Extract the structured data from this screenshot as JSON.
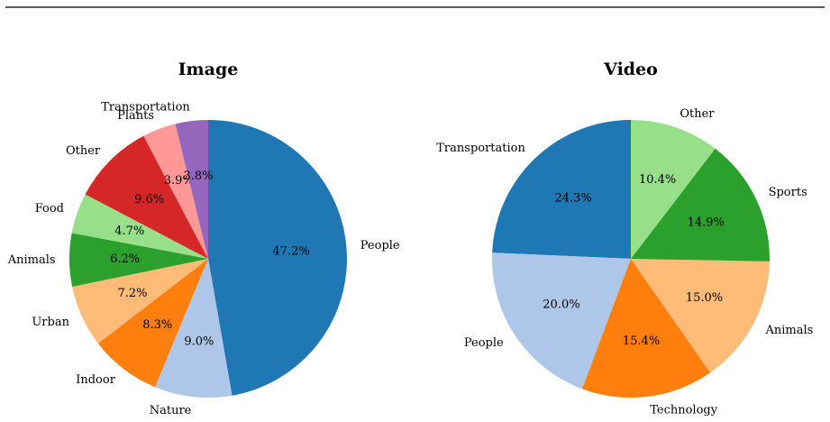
{
  "chart_data": [
    {
      "type": "pie",
      "title": "Image",
      "start_angle_deg": 90,
      "direction": "clockwise",
      "slices": [
        {
          "label": "People",
          "value": 47.2,
          "display": "47.2%",
          "color": "#1f77b4"
        },
        {
          "label": "Nature",
          "value": 9.0,
          "display": "9.0%",
          "color": "#aec7e8"
        },
        {
          "label": "Indoor",
          "value": 8.3,
          "display": "8.3%",
          "color": "#ff7f0e"
        },
        {
          "label": "Urban",
          "value": 7.2,
          "display": "7.2%",
          "color": "#ffbb78"
        },
        {
          "label": "Animals",
          "value": 6.2,
          "display": "6.2%",
          "color": "#2ca02c"
        },
        {
          "label": "Food",
          "value": 4.7,
          "display": "4.7%",
          "color": "#98df8a"
        },
        {
          "label": "Other",
          "value": 9.6,
          "display": "9.6%",
          "color": "#d62728"
        },
        {
          "label": "Plants",
          "value": 3.9,
          "display": "3.9%",
          "color": "#ff9896"
        },
        {
          "label": "Transportation",
          "value": 3.8,
          "display": "3.8%",
          "color": "#9467bd"
        }
      ]
    },
    {
      "type": "pie",
      "title": "Video",
      "start_angle_deg": 90,
      "direction": "counterclockwise",
      "slices": [
        {
          "label": "Transportation",
          "value": 24.3,
          "display": "24.3%",
          "color": "#1f77b4"
        },
        {
          "label": "People",
          "value": 20.0,
          "display": "20.0%",
          "color": "#aec7e8"
        },
        {
          "label": "Technology",
          "value": 15.4,
          "display": "15.4%",
          "color": "#ff7f0e"
        },
        {
          "label": "Animals",
          "value": 15.0,
          "display": "15.0%",
          "color": "#ffbb78"
        },
        {
          "label": "Sports",
          "value": 14.9,
          "display": "14.9%",
          "color": "#2ca02c"
        },
        {
          "label": "Other",
          "value": 10.4,
          "display": "10.4%",
          "color": "#98df8a"
        }
      ]
    }
  ]
}
